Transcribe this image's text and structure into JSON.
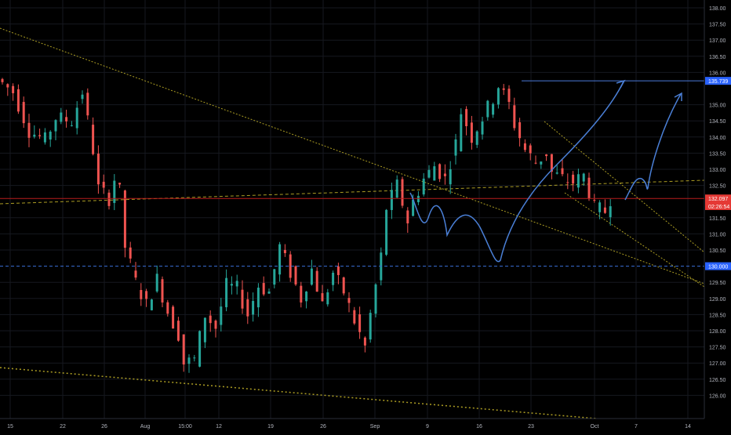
{
  "chart_data": {
    "type": "candlestick",
    "title": "",
    "xlabel": "",
    "ylabel": "",
    "ylim": [
      125.8,
      138.2
    ],
    "x_tick_labels": [
      "15",
      "22",
      "26",
      "Aug",
      "15:00",
      "12",
      "19",
      "26",
      "Sep",
      "9",
      "16",
      "23",
      "Oct",
      "7",
      "14"
    ],
    "y_tick_labels": [
      "126.00",
      "126.50",
      "127.00",
      "127.50",
      "128.00",
      "128.50",
      "129.00",
      "129.50",
      "130.50",
      "131.00",
      "131.50",
      "132.50",
      "133.00",
      "133.50",
      "134.00",
      "134.50",
      "135.00",
      "136.00",
      "136.50",
      "137.00",
      "137.50",
      "138.00"
    ],
    "price_badges": [
      {
        "label": "135.739",
        "value": 135.739,
        "color": "#2962ff"
      },
      {
        "label": "132.097",
        "value": 132.097,
        "color": "#e53935"
      },
      {
        "label": "02:26:54",
        "value": 131.86,
        "color": "#e53935"
      },
      {
        "label": "130.000",
        "value": 130.0,
        "color": "#2962ff"
      }
    ],
    "horizontal_levels": [
      {
        "name": "resistance",
        "value": 135.739,
        "color": "#4a79d9",
        "style": "solid"
      },
      {
        "name": "last-price",
        "value": 132.097,
        "color": "#b71c1c",
        "style": "solid"
      },
      {
        "name": "support",
        "value": 130.0,
        "color": "#3a6fd8",
        "style": "dashed"
      }
    ],
    "colors": {
      "up": "#26a69a",
      "down": "#ef5350",
      "trendline": "#c9b82a",
      "projection": "#4a7fd6",
      "axis_text": "#b2b5be",
      "grid": "#16181f"
    },
    "close_path": [
      [
        0,
        135.8
      ],
      [
        3,
        135.4
      ],
      [
        6,
        134.2
      ],
      [
        9,
        133.9
      ],
      [
        11,
        134.6
      ],
      [
        14,
        134.5
      ],
      [
        16,
        135.4
      ],
      [
        18,
        133.6
      ],
      [
        19,
        132.4
      ],
      [
        21,
        132.1
      ],
      [
        22,
        132.7
      ],
      [
        23,
        132.3
      ],
      [
        24,
        130.6
      ],
      [
        26,
        129.5
      ],
      [
        28,
        128.8
      ],
      [
        30,
        129.6
      ],
      [
        32,
        128.6
      ],
      [
        34,
        127.9
      ],
      [
        35,
        127.0
      ],
      [
        37,
        127.1
      ],
      [
        39,
        128.5
      ],
      [
        41,
        128.1
      ],
      [
        43,
        129.4
      ],
      [
        45,
        129.3
      ],
      [
        47,
        128.5
      ],
      [
        49,
        129.4
      ],
      [
        51,
        129.2
      ],
      [
        53,
        130.6
      ],
      [
        55,
        129.8
      ],
      [
        57,
        129.0
      ],
      [
        59,
        129.9
      ],
      [
        61,
        128.8
      ],
      [
        63,
        129.8
      ],
      [
        65,
        129.2
      ],
      [
        67,
        128.3
      ],
      [
        69,
        127.5
      ],
      [
        70,
        128.5
      ],
      [
        72,
        130.3
      ],
      [
        73,
        131.8
      ],
      [
        75,
        132.5
      ],
      [
        77,
        131.4
      ],
      [
        78,
        132.0
      ],
      [
        80,
        132.7
      ],
      [
        82,
        133.1
      ],
      [
        84,
        132.7
      ],
      [
        86,
        133.8
      ],
      [
        87,
        134.8
      ],
      [
        89,
        134.0
      ],
      [
        91,
        134.6
      ],
      [
        93,
        135.2
      ],
      [
        94,
        135.6
      ],
      [
        96,
        135.0
      ],
      [
        97,
        134.4
      ],
      [
        99,
        133.6
      ],
      [
        101,
        133.2
      ],
      [
        103,
        133.5
      ],
      [
        104,
        132.9
      ],
      [
        106,
        132.7
      ],
      [
        108,
        132.6
      ],
      [
        110,
        132.8
      ],
      [
        112,
        131.8
      ],
      [
        114,
        131.7
      ],
      [
        115,
        132.1
      ]
    ]
  }
}
